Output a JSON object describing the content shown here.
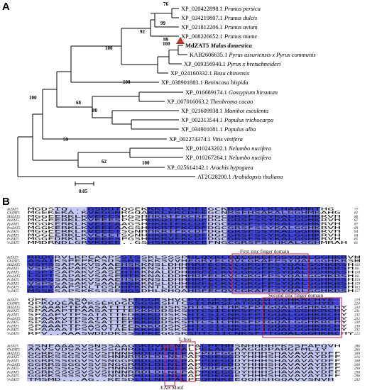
{
  "panels": {
    "a": "A",
    "b": "B"
  },
  "tree": {
    "leaves": [
      {
        "acc": "XP_020422898.1",
        "sp": "Prunus persica"
      },
      {
        "acc": "XP_034219807.1",
        "sp": "Prunus dulcis"
      },
      {
        "acc": "XP_021812206.1",
        "sp": "Prunus avium"
      },
      {
        "acc": "XP_008226652.1",
        "sp": "Prunus mume"
      },
      {
        "acc": "MdZAT5",
        "sp": "Malus domestica"
      },
      {
        "acc": "KAB2606635.1",
        "sp": "Pyrus ussuriensis x Pyrus communis"
      },
      {
        "acc": "XP_009356940.1",
        "sp": "Pyrus x bretschneideri"
      },
      {
        "acc": "XP_024160332.1",
        "sp": "Rosa chinensis"
      },
      {
        "acc": "XP_038901883.1",
        "sp": "Benincasa hispida"
      },
      {
        "acc": "XP_016689174.1",
        "sp": "Gossypium hirsutum"
      },
      {
        "acc": "XP_007016063.2",
        "sp": "Theobroma cacao"
      },
      {
        "acc": "XP_021609938.1",
        "sp": "Manihot esculenta"
      },
      {
        "acc": "XP_002313544.1",
        "sp": "Populus trichocarpa"
      },
      {
        "acc": "XP_034901081.1",
        "sp": "Populus alba"
      },
      {
        "acc": "XP_002274374.1",
        "sp": "Vitis vinifera"
      },
      {
        "acc": "XP_010243202.1",
        "sp": "Nelumbo nucifera"
      },
      {
        "acc": "XP_010267264.1",
        "sp": "Nelumbo nucifera"
      },
      {
        "acc": "XP_025614142.1",
        "sp": "Arachis hypogaea"
      },
      {
        "acc": "AT2G28200.1",
        "sp": "Arabidopsis thaliana"
      }
    ],
    "bootstrap": [
      "76",
      "99",
      "92",
      "99",
      "100",
      "100",
      "100",
      "68",
      "80",
      "100",
      "59",
      "62",
      "100"
    ],
    "scale_label": "0.05",
    "marker_color": "#c0302a"
  },
  "alignment": {
    "species": [
      "AtZAT5",
      "GhZAT5",
      "MdZAT5",
      "PbZAT5",
      "PpZAT5",
      "PmZAT5",
      "PcZAT5",
      "PaZAT5",
      "PvZAT5",
      "VvZAT5"
    ],
    "blocks": [
      {
        "seq": [
          "MGDSTQ...GSDDTQGEKKKLYKCPFEGCKRSFTSLKLHAAMRTHG",
          "MGEKEKA.KVEGGNRGQAKKLFKCDFEGCNRSFHSAKALGGHMRAHG",
          "MGGEERKLKVEEESPGSHHKRTFKCDFDGCGRSFSSYKALGGHKRVH",
          "MGGEERKLKVEEESPGSHHKRTFKCDFDGCGRSFSSYKALGGHKRVH",
          "MGGKERKLKVEEEAAGSHHKRTFKCDFDGCGRSFSSYKALGGHKRVH",
          "MGGKERKLKVEEEAAGSHHKRTFKCDFDGCGRSFSSYKALGGHKRVH",
          "MGGEERKLKVEEETSGNHHKRTFKCDFDGCGRSFSSYKALGGHKRVH",
          "MGGEERKLKVEEETSGNHHKRTFKCDFDGCGRSFSSYKALGGHKRVH",
          "MGGEDRKLKVEEESPGSHHKRVFKCDFDGCGRSFSSYKALGGHKRVH",
          "MMDRNDLGRVKQEE..GSHSKRVFKCEFNGCGRSFSSHKALGGHMRAH"
        ],
        "ends": [
          "77",
          "81",
          "86",
          "87",
          "87",
          "89",
          "84",
          "84",
          "85",
          "81"
        ]
      },
      {
        "seq": [
          "RRDGRVLKPEAAPSSTSSKLSSSPHLQYKCQICGKEFGSYQALGGHKRVH",
          "ASAIKSPEPKKSDSSRSSKKSVVHEGRYECQVCGKAFPSYQALGGHKRSH",
          "VSPSSAPAKVSAAEHSKKNSLDHHHRFECKVCGKGFPSYQALGGHKRSH",
          "VSPSSAPAKVSAAEHSKKNSLDHHHRFECKVCGKGFPSYQALGGHKRSH",
          "LSPTSAPAKVSASEHTKKNALDDHHRFECKVCGKGFPSYQALGGHKRSH",
          "LSPTSAPAKVSASEHTKKNALDDHHRFECKVCGKGFPSYQALGGHKRSH",
          "VSPSSASAKVSAAEHSKKNSLDHHHRFECKVCGKGFPSYQALGGHKRSH",
          "VSPSSASAKVSAAEHSKKNSLDHHHRFECKVCGKGFPSYQALGGHKRSH",
          "ASPTAAPSKLTGSDHPKKNTLDDHHRYECKVCGKGFPSYQALGGHKRSH",
          "MSSKSAPSKKSSSEHGSDHLKHQAHRFECQVCGKAFPSYQALGGHKRSH"
        ],
        "ends": [
          "153",
          "147",
          "160",
          "161",
          "158",
          "161",
          "159",
          "159",
          "163",
          "157"
        ]
      },
      {
        "seq": [
          "QPK...SSA.....SEEGGKSHVCPVCGKSFPSGQALGGHKRCHYE",
          "QPKQQEAEVKSEKDGDSGSKSHTCSICNKSFATGQALGGHKRCHYD",
          "SPAAAPTPAASATTTEKKKDDSKSHTCSICHKSFPTGQALGGHKRCHY",
          "SPAAAPTPAASATTTEKKKDDSKSHTCSICHKSFPTGQALGGHKRCHY",
          "SPAAPVTPSATATTEDKKKDDSKSHTCSICNKSFPTGQALGGHKRCHY",
          "SPAAPVTPSATATTEDKKKDDSKSHTCSICNKSFPTGQALGGHKRCHY",
          "SPAAAPTPSASATTEEKKKDDSKSHTCSICHKSFPTGQALGGHKRCHY",
          "SPAAAPTPSASATTEEKKKDDSKSHTCSICHKSFPTGQALGGHKRCHY",
          "SPAAAATPSVSVTAEEKKKEDSKSHTCSICNKSFPTGQALGGHKRCHY",
          "RPV..AAASWDDDKSSSPKEGGSKSHTCSICNKSFPTGQALGGHKRCHY"
        ],
        "ends": [
          "219",
          "224",
          "234",
          "231",
          "232",
          "232",
          "230",
          "230",
          "232",
          "223"
        ]
      },
      {
        "seq": [
          "SSNFAAASVSNSSAAGGKDVDLNLPALPEHHSNHHHHPKSSPAPQVH",
          "AAVSVDSASSSSSGNRDLDLNLPALPEEAESAAGGDPARGFMLIY",
          "GGRKSSGSVSVSHNNRRDLDLNLPAPPDEGGDYHHHSHAVAVAYDFF",
          "GGRKSSGSVSVSHNNRRDLDLNLPAPPDEGGDYHHHSHAVAVAYDFF",
          "GGRRSSGGVSVSNGGRRDLDLNLPAPPDEGDDYHHHSHAVAVAYDFF",
          "GGRRSSGGVSVSNGGRRDLDLNLPAPPDEGDDYHHHSHAVAVAYDFF",
          "GGRKSSGSVSVSHNNRRDLDLNLPAPPDEGGDYHHHSHAVAVAYDFF",
          "GGRKSSGSVSVSHNNRRDLDLNLPAPPDEGGDYHHHSHAVAVAYDFF",
          "GGRKSSSSVSVSNGNRRDLDLNLPAPPDEGGEYHHHSHAVAVAYDFF",
          "TMSMD...AG..KESDLDLNLPALPEQHNKEEQQHSHGQAVVSNVH"
        ],
        "ends": [
          "286",
          "260",
          "309",
          "316",
          "308",
          "308",
          "290",
          "290",
          "296",
          "292"
        ]
      }
    ],
    "annotations": {
      "first": "First zinc finger domain",
      "second": "Second zinc finger domain",
      "lab": "L-box",
      "ear": "EAR Motif"
    },
    "colors": {
      "dark": "#3b3fd6",
      "mid": "#7d80e6",
      "light": "#c4c6f3",
      "box": "#cc2a4a"
    }
  }
}
